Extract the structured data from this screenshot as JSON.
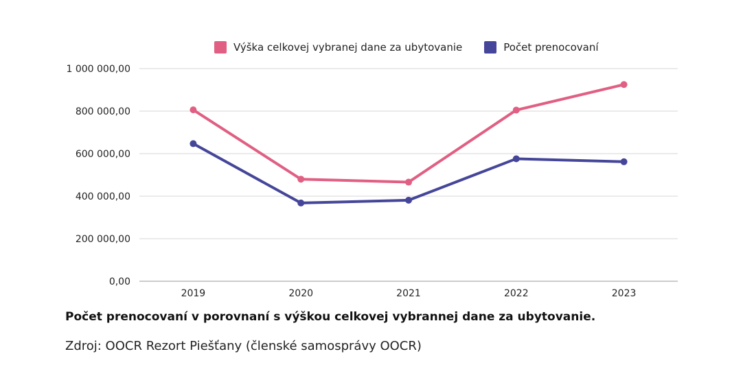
{
  "chart_data": {
    "type": "line",
    "categories": [
      "2019",
      "2020",
      "2021",
      "2022",
      "2023"
    ],
    "series": [
      {
        "name": "Výška celkovej vybranej dane za ubytovanie",
        "color": "#e05f83",
        "values": [
          806000,
          480000,
          466000,
          805000,
          925000
        ]
      },
      {
        "name": "Počet prenocovaní",
        "color": "#454699",
        "values": [
          647000,
          368000,
          381000,
          576000,
          562000
        ]
      }
    ],
    "ylim": [
      0,
      1000000
    ],
    "yticks": [
      0,
      200000,
      400000,
      600000,
      800000,
      1000000
    ],
    "ytick_labels": [
      "0,00",
      "200 000,00",
      "400 000,00",
      "600 000,00",
      "800 000,00",
      "1 000 000,00"
    ],
    "grid": true,
    "legend_placement": "top-center",
    "title": "Počet prenocovaní v porovnaní s výškou celkovej vybrannej dane za ubytovanie.",
    "source": "Zdroj: OOCR Rezort Piešťany (členské samosprávy OOCR)"
  }
}
